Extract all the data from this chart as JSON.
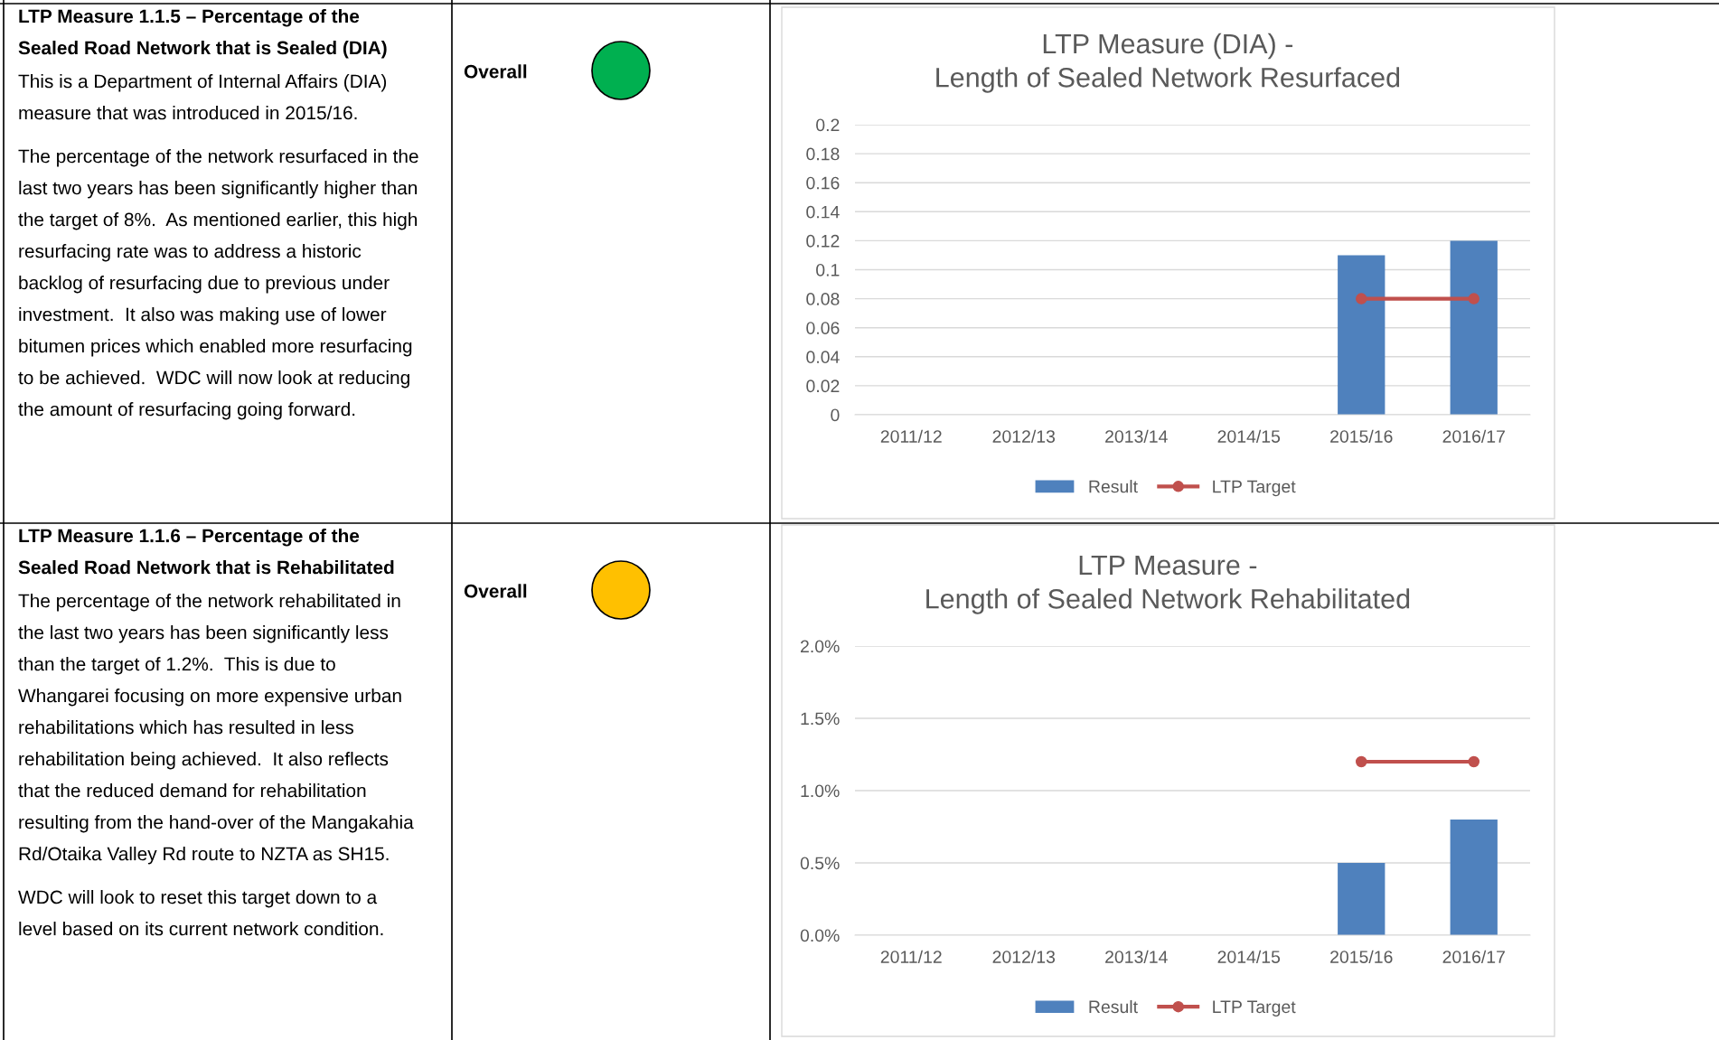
{
  "chart_data": [
    {
      "type": "bar",
      "title": "LTP Measure (DIA) -\nLength of Sealed Network Resurfaced",
      "categories": [
        "2011/12",
        "2012/13",
        "2013/14",
        "2014/15",
        "2015/16",
        "2016/17"
      ],
      "series": [
        {
          "name": "Result",
          "color": "#4f81bd",
          "values": [
            null,
            null,
            null,
            null,
            0.11,
            0.12
          ]
        },
        {
          "name": "LTP Target",
          "type": "line",
          "color": "#c0504d",
          "marker": "circle",
          "values": [
            null,
            null,
            null,
            null,
            0.08,
            0.08
          ]
        }
      ],
      "ylim": [
        0,
        0.2
      ],
      "yticks": [
        0,
        0.02,
        0.04,
        0.06,
        0.08,
        0.1,
        0.12,
        0.14,
        0.16,
        0.18,
        0.2
      ],
      "grid": "y",
      "legend": "bottom",
      "annotations": [
        "LTP Measure 1.1.5 – Percentage of the Sealed Road Network that is Sealed (DIA)",
        "This is a Department of Internal Affairs (DIA) measure that was introduced in 2015/16.",
        "The percentage of the network resurfaced in the last two years has been significantly higher than the target of 8%.  As mentioned earlier, this high resurfacing rate was to address a historic backlog of resurfacing due to previous under investment.  It also was making use of lower bitumen prices which enabled more resurfacing to be achieved.  WDC will now look at reducing the amount of resurfacing going forward.",
        "Overall"
      ]
    },
    {
      "type": "bar",
      "title": "LTP Measure -\nLength of Sealed Network Rehabilitated",
      "categories": [
        "2011/12",
        "2012/13",
        "2013/14",
        "2014/15",
        "2015/16",
        "2016/17"
      ],
      "series": [
        {
          "name": "Result",
          "color": "#4f81bd",
          "values": [
            null,
            null,
            null,
            null,
            0.5,
            0.8
          ]
        },
        {
          "name": "LTP Target",
          "type": "line",
          "color": "#c0504d",
          "marker": "circle",
          "values": [
            null,
            null,
            null,
            null,
            1.2,
            1.2
          ]
        }
      ],
      "ylim": [
        0,
        2
      ],
      "yticks": [
        {
          "value": 0,
          "label": "0.0%"
        },
        {
          "value": 0.5,
          "label": "0.5%"
        },
        {
          "value": 1,
          "label": "1.0%"
        },
        {
          "value": 1.5,
          "label": "1.5%"
        },
        {
          "value": 2,
          "label": "2.0%"
        }
      ],
      "grid": "y",
      "legend": "bottom",
      "annotations": [
        "LTP Measure 1.1.6 – Percentage of the Sealed Road Network that is Rehabilitated",
        "The percentage of the network rehabilitated in the last two years has been significantly less than the target of 1.2%.  This is due to Whangarei focusing on more expensive urban rehabilitations which has resulted in less rehabilitation being achieved.  It also reflects that the reduced demand for rehabilitation resulting from the hand-over of the Mangakahia Rd/Otaika Valley Rd route to NZTA as SH15.",
        "WDC will look to reset this target down to a level based on its current network condition.",
        "Overall"
      ]
    }
  ]
}
